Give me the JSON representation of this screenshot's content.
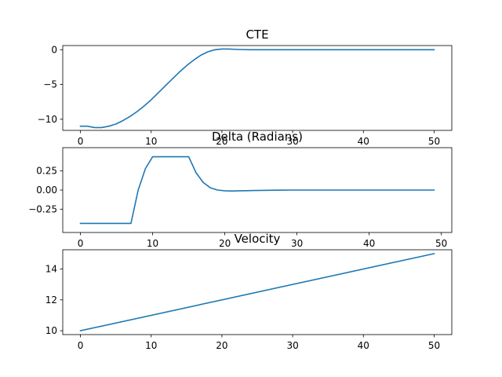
{
  "chart_data": [
    {
      "type": "line",
      "title": "CTE",
      "xlim": [
        -2.5,
        52.5
      ],
      "ylim": [
        -11.6,
        0.6
      ],
      "xticks": [
        0,
        10,
        20,
        30,
        40,
        50
      ],
      "xtick_labels": [
        "0",
        "10",
        "20",
        "30",
        "40",
        "50"
      ],
      "yticks": [
        0,
        -5,
        -10
      ],
      "ytick_labels": [
        "0",
        "−5",
        "−10"
      ],
      "grid": false,
      "color": "#1f77b4",
      "series": [
        {
          "x": [
            0,
            1,
            2,
            3,
            4,
            5,
            6,
            7,
            8,
            9,
            10,
            11,
            12,
            13,
            14,
            15,
            16,
            17,
            18,
            19,
            20,
            21,
            22,
            23,
            24,
            25,
            26,
            27,
            28,
            29,
            30,
            31,
            32,
            33,
            34,
            35,
            36,
            37,
            38,
            39,
            40,
            41,
            42,
            43,
            44,
            45,
            46,
            47,
            48,
            49,
            50
          ],
          "y": [
            -11.0,
            -11.0,
            -11.2,
            -11.2,
            -11.0,
            -10.7,
            -10.2,
            -9.6,
            -8.9,
            -8.1,
            -7.2,
            -6.2,
            -5.2,
            -4.2,
            -3.2,
            -2.3,
            -1.5,
            -0.8,
            -0.3,
            0.0,
            0.1,
            0.1,
            0.05,
            0.02,
            0.0,
            0.0,
            0.0,
            0.0,
            0.0,
            0.0,
            0.0,
            0.0,
            0.0,
            0.0,
            0.0,
            0.0,
            0.0,
            0.0,
            0.0,
            0.0,
            0.0,
            0.0,
            0.0,
            0.0,
            0.0,
            0.0,
            0.0,
            0.0,
            0.0,
            0.0,
            0.0
          ]
        }
      ]
    },
    {
      "type": "line",
      "title": "Delta (Radians)",
      "xlim": [
        -2.45,
        51.45
      ],
      "ylim": [
        -0.555,
        0.555
      ],
      "xticks": [
        0,
        10,
        20,
        30,
        40,
        50
      ],
      "xtick_labels": [
        "0",
        "10",
        "20",
        "30",
        "40",
        "50"
      ],
      "yticks": [
        0.25,
        0.0,
        -0.25
      ],
      "ytick_labels": [
        "0.25",
        "0.00",
        "−0.25"
      ],
      "grid": false,
      "color": "#1f77b4",
      "series": [
        {
          "x": [
            0,
            1,
            2,
            3,
            4,
            5,
            6,
            7,
            8,
            9,
            10,
            11,
            12,
            13,
            14,
            15,
            16,
            17,
            18,
            19,
            20,
            21,
            22,
            23,
            24,
            25,
            26,
            27,
            28,
            29,
            30,
            31,
            32,
            33,
            34,
            35,
            36,
            37,
            38,
            39,
            40,
            41,
            42,
            43,
            44,
            45,
            46,
            47,
            48,
            49
          ],
          "y": [
            -0.436,
            -0.436,
            -0.436,
            -0.436,
            -0.436,
            -0.436,
            -0.436,
            -0.436,
            0.0,
            0.28,
            0.436,
            0.436,
            0.436,
            0.436,
            0.436,
            0.436,
            0.23,
            0.1,
            0.03,
            0.0,
            -0.01,
            -0.012,
            -0.01,
            -0.008,
            -0.006,
            -0.004,
            -0.003,
            -0.002,
            -0.001,
            0.0,
            0.0,
            0.0,
            0.0,
            0.0,
            0.0,
            0.0,
            0.0,
            0.0,
            0.0,
            0.0,
            0.0,
            0.0,
            0.0,
            0.0,
            0.0,
            0.0,
            0.0,
            0.0,
            0.0,
            0.0
          ]
        }
      ]
    },
    {
      "type": "line",
      "title": "Velocity",
      "xlim": [
        -2.5,
        52.5
      ],
      "ylim": [
        9.75,
        15.25
      ],
      "xticks": [
        0,
        10,
        20,
        30,
        40,
        50
      ],
      "xtick_labels": [
        "0",
        "10",
        "20",
        "30",
        "40",
        "50"
      ],
      "yticks": [
        10,
        12,
        14
      ],
      "ytick_labels": [
        "10",
        "12",
        "14"
      ],
      "grid": false,
      "color": "#1f77b4",
      "series": [
        {
          "x": [
            0,
            50
          ],
          "y": [
            10,
            15
          ]
        }
      ]
    }
  ]
}
